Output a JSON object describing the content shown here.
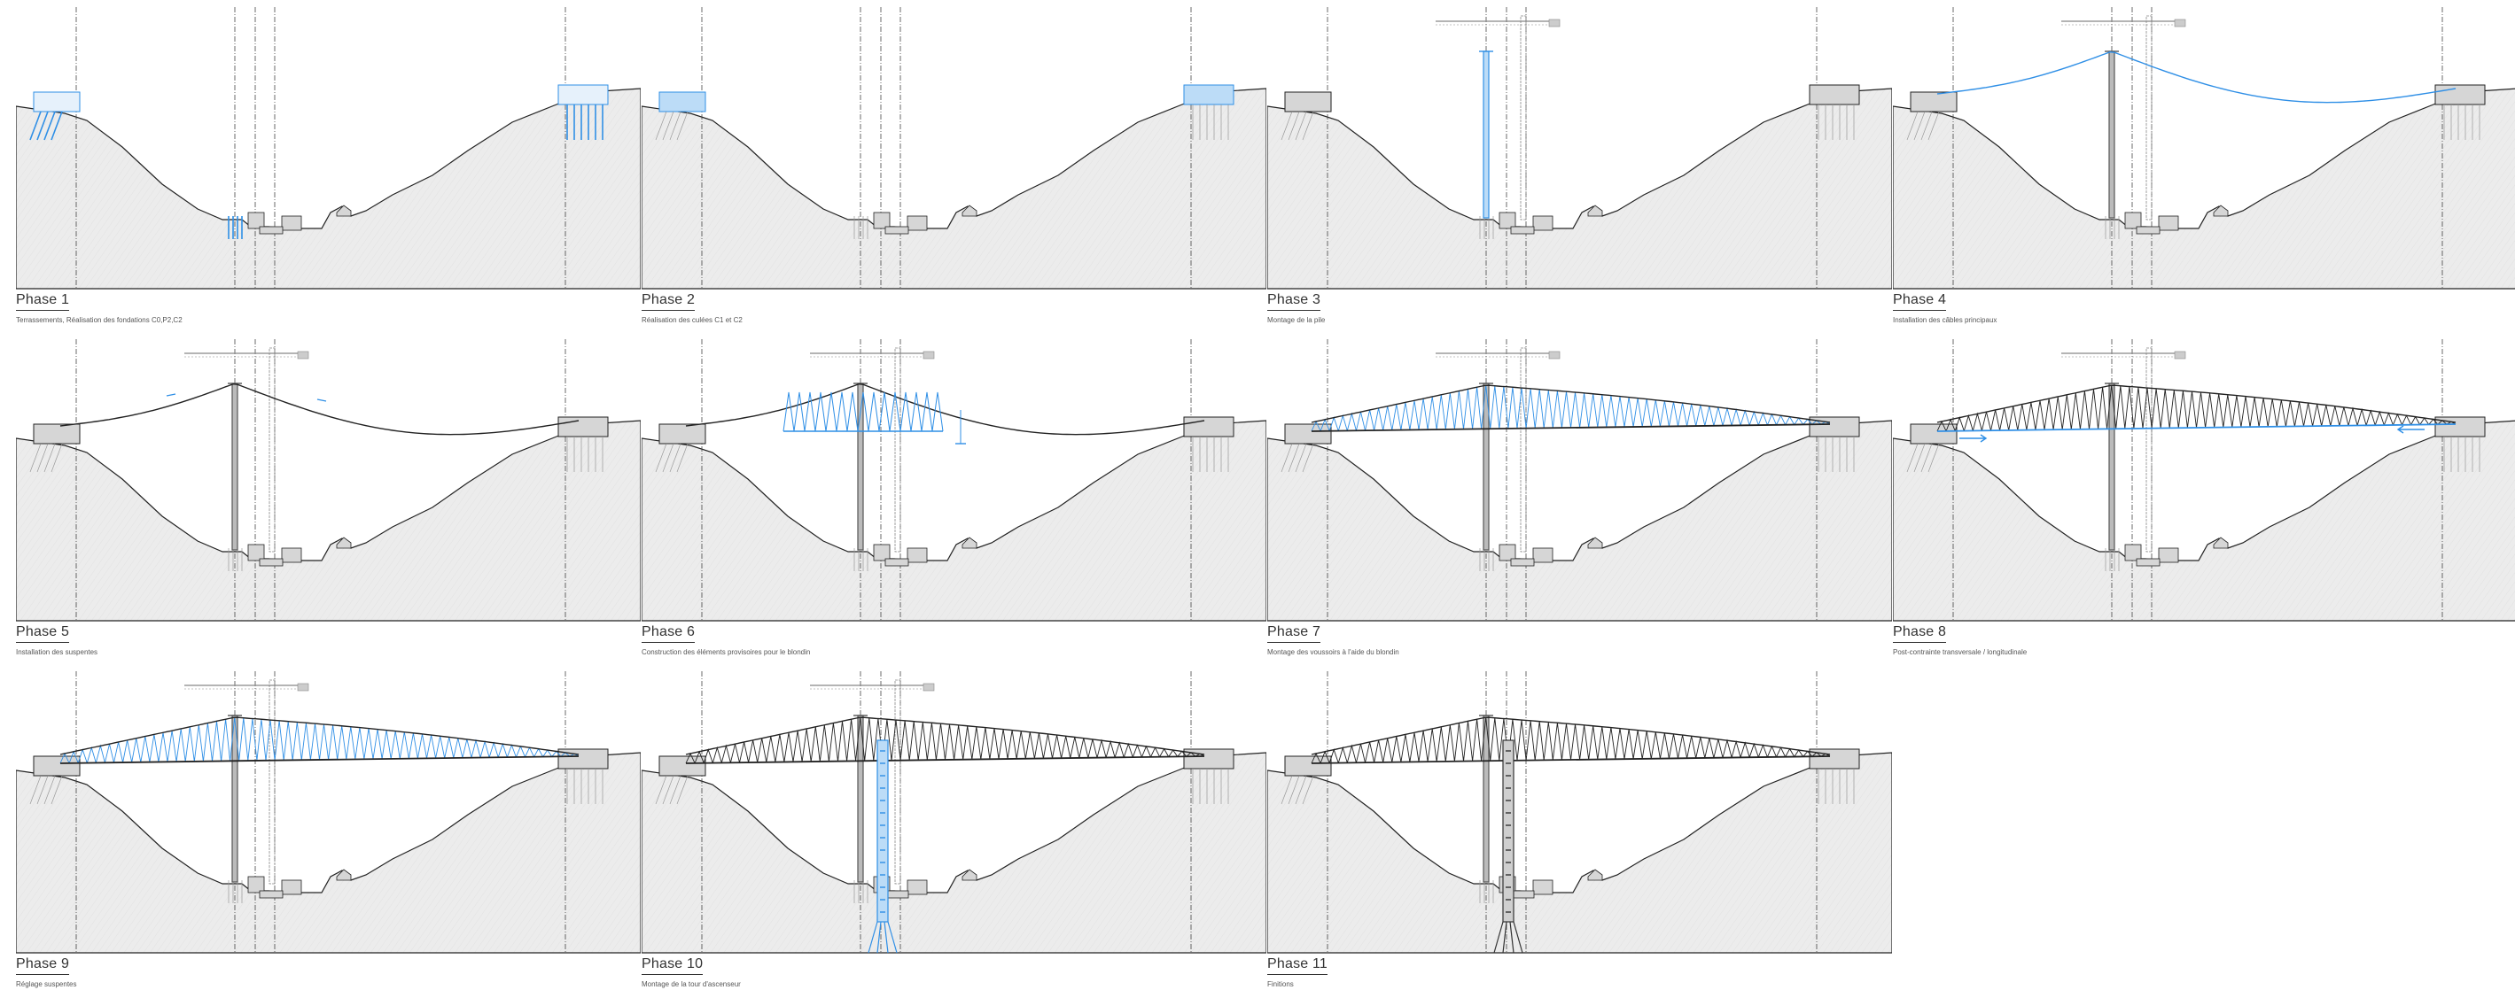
{
  "colors": {
    "accent": "#2f8fe6",
    "accent_fill": "#bcdcf7",
    "terrain_fill": "#ececec",
    "line": "#222222",
    "structure_fill": "#d6d6d6"
  },
  "phases": [
    {
      "title": "Phase 1",
      "description": "Terrassements, Réalisation des fondations C0,P2,C2",
      "step": 1
    },
    {
      "title": "Phase 2",
      "description": "Réalisation des culées C1 et C2",
      "step": 2
    },
    {
      "title": "Phase 3",
      "description": "Montage de la pile",
      "step": 3
    },
    {
      "title": "Phase 4",
      "description": "Installation des câbles principaux",
      "step": 4
    },
    {
      "title": "Phase 5",
      "description": "Installation des suspentes",
      "step": 5
    },
    {
      "title": "Phase 6",
      "description": "Construction des éléments provisoires pour le blondin",
      "step": 6
    },
    {
      "title": "Phase 7",
      "description": "Montage des voussoirs à l'aide du blondin",
      "step": 7
    },
    {
      "title": "Phase 8",
      "description": "Post-contrainte transversale / longitudinale",
      "step": 8
    },
    {
      "title": "Phase 9",
      "description": "Réglage suspentes",
      "step": 9
    },
    {
      "title": "Phase 10",
      "description": "Montage de la tour d'ascenseur",
      "step": 10
    },
    {
      "title": "Phase 11",
      "description": "Finitions",
      "step": 11
    }
  ]
}
